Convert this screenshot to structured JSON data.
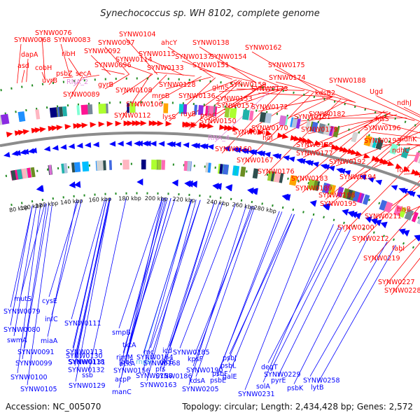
{
  "title": "Synechococcus sp. WH 8102, complete genome",
  "footer": {
    "accession": "Accession: NC_005070",
    "topology": "Topology: circular; Length: 2,434,428 bp; Genes: 2,572"
  },
  "colors": {
    "forward_strand": "#ff0000",
    "reverse_strand": "#0000ff",
    "rna": "#e08ad8",
    "cds_light": "#55b8ee",
    "backbone": "#8c8c8c",
    "dotted_track": "#228b22"
  },
  "ticks": [
    "80 kbp",
    "100 kbp",
    "120 kbp",
    "140 kbp",
    "160 kbp",
    "180 kbp",
    "200 kbp",
    "220 kbp",
    "240 kbp",
    "260 kbp",
    "280 kbp"
  ],
  "top_labels": [
    {
      "text": "SYNW0076",
      "color": "red"
    },
    {
      "text": "SYNW0068",
      "color": "red"
    },
    {
      "text": "SYNW0083",
      "color": "red"
    },
    {
      "text": "SYNW0104",
      "color": "red"
    },
    {
      "text": "SYNW0097",
      "color": "red"
    },
    {
      "text": "ahcY",
      "color": "red"
    },
    {
      "text": "SYNW0138",
      "color": "red"
    },
    {
      "text": "dapA",
      "color": "red"
    },
    {
      "text": "ribH",
      "color": "red"
    },
    {
      "text": "SYNW0092",
      "color": "red"
    },
    {
      "text": "SYNW0115",
      "color": "red"
    },
    {
      "text": "SYNW0137",
      "color": "red"
    },
    {
      "text": "SYNW0154",
      "color": "red"
    },
    {
      "text": "SYNW0162",
      "color": "red"
    },
    {
      "text": "asd",
      "color": "red"
    },
    {
      "text": "cobH",
      "color": "red"
    },
    {
      "text": "psbZ",
      "color": "red"
    },
    {
      "text": "secA",
      "color": "red"
    },
    {
      "text": "SYNW0096",
      "color": "red"
    },
    {
      "text": "SYNW0114",
      "color": "red"
    },
    {
      "text": "SYNW0133",
      "color": "red"
    },
    {
      "text": "SYNW0151",
      "color": "red"
    },
    {
      "text": "SYNW0175",
      "color": "red"
    },
    {
      "text": "uvrB",
      "color": "red"
    },
    {
      "text": "RNA_2",
      "color": "pink"
    },
    {
      "text": "gyrB",
      "color": "red"
    },
    {
      "text": "SYNW0108",
      "color": "red"
    },
    {
      "text": "SYNW0128",
      "color": "red"
    },
    {
      "text": "glmS",
      "color": "red"
    },
    {
      "text": "SYNW0159",
      "color": "red"
    },
    {
      "text": "SYNW0174",
      "color": "red"
    },
    {
      "text": "SYNW0089",
      "color": "red"
    },
    {
      "text": "mreB",
      "color": "red"
    },
    {
      "text": "SYNW0136",
      "color": "red"
    },
    {
      "text": "SYNW0153",
      "color": "red"
    },
    {
      "text": "SYNW0173",
      "color": "red"
    },
    {
      "text": "SYNW0188",
      "color": "red"
    },
    {
      "text": "SYNW0106",
      "color": "red"
    },
    {
      "text": "kdsB2",
      "color": "red"
    },
    {
      "text": "SYNW0112",
      "color": "red"
    },
    {
      "text": "lysS",
      "color": "red"
    },
    {
      "text": "ruvB",
      "color": "red"
    },
    {
      "text": "psaC",
      "color": "red"
    },
    {
      "text": "SYNW0157",
      "color": "red"
    },
    {
      "text": "SYNW0172",
      "color": "red"
    },
    {
      "text": "SYNW0182",
      "color": "red"
    },
    {
      "text": "Ugd",
      "color": "red"
    },
    {
      "text": "thiC",
      "color": "red"
    },
    {
      "text": "SYNW0150",
      "color": "red"
    },
    {
      "text": "SYNW0170",
      "color": "red"
    },
    {
      "text": "SYNW0181",
      "color": "red"
    },
    {
      "text": "hisS",
      "color": "red"
    },
    {
      "text": "ndhJ",
      "color": "red"
    },
    {
      "text": "RNA_4",
      "color": "pink"
    },
    {
      "text": "SYNW0165",
      "color": "red"
    },
    {
      "text": "SYNW0179",
      "color": "red"
    },
    {
      "text": "SYNW0196",
      "color": "red"
    },
    {
      "text": "SYNW0160",
      "color": "red"
    },
    {
      "text": "hoI",
      "color": "red"
    },
    {
      "text": "SYNW0178",
      "color": "red"
    },
    {
      "text": "SYNW0193",
      "color": "red"
    },
    {
      "text": "ndhK",
      "color": "red"
    },
    {
      "text": "SYNW0167",
      "color": "red"
    },
    {
      "text": "SYNW0177",
      "color": "red"
    },
    {
      "text": "SYNW0192",
      "color": "red"
    },
    {
      "text": "ndhC",
      "color": "red"
    },
    {
      "text": "SYNW0176",
      "color": "red"
    },
    {
      "text": "SYNW0194",
      "color": "red"
    },
    {
      "text": "SYNW0183",
      "color": "red"
    },
    {
      "text": "folK",
      "color": "red"
    },
    {
      "text": "SYNW0189",
      "color": "red"
    },
    {
      "text": "SYNW0198",
      "color": "red"
    },
    {
      "text": "SYNW0195",
      "color": "red"
    },
    {
      "text": "SYNW0211",
      "color": "red"
    },
    {
      "text": "hisB",
      "color": "red"
    },
    {
      "text": "SYNW0200",
      "color": "red"
    },
    {
      "text": "fabI",
      "color": "red"
    },
    {
      "text": "SYNW0212",
      "color": "red"
    },
    {
      "text": "SYNW0219",
      "color": "red"
    },
    {
      "text": "SYNW0227",
      "color": "red"
    },
    {
      "text": "SYNW0228",
      "color": "red"
    }
  ],
  "bottom_labels": [
    {
      "text": "mutS",
      "color": "blue"
    },
    {
      "text": "cysE",
      "color": "blue"
    },
    {
      "text": "SYNW0079",
      "color": "blue"
    },
    {
      "text": "infC",
      "color": "blue"
    },
    {
      "text": "SYNW0080",
      "color": "blue"
    },
    {
      "text": "SYNW0111",
      "color": "blue"
    },
    {
      "text": "smpB",
      "color": "blue"
    },
    {
      "text": "swmA",
      "color": "blue"
    },
    {
      "text": "miaA",
      "color": "blue"
    },
    {
      "text": "tktA",
      "color": "blue"
    },
    {
      "text": "SYNW0113",
      "color": "blue"
    },
    {
      "text": "SYNW0091",
      "color": "blue"
    },
    {
      "text": "SYNW0118",
      "color": "blue"
    },
    {
      "text": "rnc",
      "color": "blue"
    },
    {
      "text": "fabF",
      "color": "blue"
    },
    {
      "text": "rnpB",
      "color": "light"
    },
    {
      "text": "glcE",
      "color": "blue"
    },
    {
      "text": "SYNW0099",
      "color": "blue"
    },
    {
      "text": "ssb",
      "color": "blue"
    },
    {
      "text": "SYNW0158",
      "color": "blue"
    },
    {
      "text": "acpP",
      "color": "blue"
    },
    {
      "text": "kdsA",
      "color": "blue"
    },
    {
      "text": "galE",
      "color": "blue"
    },
    {
      "text": "SYNW0100",
      "color": "blue"
    },
    {
      "text": "SYNW0129",
      "color": "blue"
    },
    {
      "text": "SYNW0163",
      "color": "blue"
    },
    {
      "text": "SYNW0105",
      "color": "blue"
    },
    {
      "text": "manC",
      "color": "blue"
    },
    {
      "text": "icd",
      "color": "blue"
    },
    {
      "text": "SYNW0185",
      "color": "blue"
    },
    {
      "text": "SYNW0130",
      "color": "blue"
    },
    {
      "text": "rimM",
      "color": "blue"
    },
    {
      "text": "SYNW0164",
      "color": "blue"
    },
    {
      "text": "kpsF",
      "color": "blue"
    },
    {
      "text": "psbJ",
      "color": "blue"
    },
    {
      "text": "ackA",
      "color": "blue"
    },
    {
      "text": "SYNW0131",
      "color": "blue"
    },
    {
      "text": "SYNW0168",
      "color": "blue"
    },
    {
      "text": "psbL",
      "color": "blue"
    },
    {
      "text": "degT",
      "color": "blue"
    },
    {
      "text": "pfs",
      "color": "blue"
    },
    {
      "text": "SYNW0190",
      "color": "blue"
    },
    {
      "text": "SYNW0132",
      "color": "blue"
    },
    {
      "text": "SYNW0156",
      "color": "blue"
    },
    {
      "text": "SYNW0186",
      "color": "blue"
    },
    {
      "text": "psbF",
      "color": "blue"
    },
    {
      "text": "SYNW0229",
      "color": "blue"
    },
    {
      "text": "pyrE",
      "color": "blue"
    },
    {
      "text": "SYNW0258",
      "color": "blue"
    },
    {
      "text": "psbE",
      "color": "blue"
    },
    {
      "text": "solA",
      "color": "blue"
    },
    {
      "text": "psbK",
      "color": "blue"
    },
    {
      "text": "lytB",
      "color": "blue"
    },
    {
      "text": "SYNW0205",
      "color": "blue"
    },
    {
      "text": "SYNW0231",
      "color": "blue"
    }
  ]
}
